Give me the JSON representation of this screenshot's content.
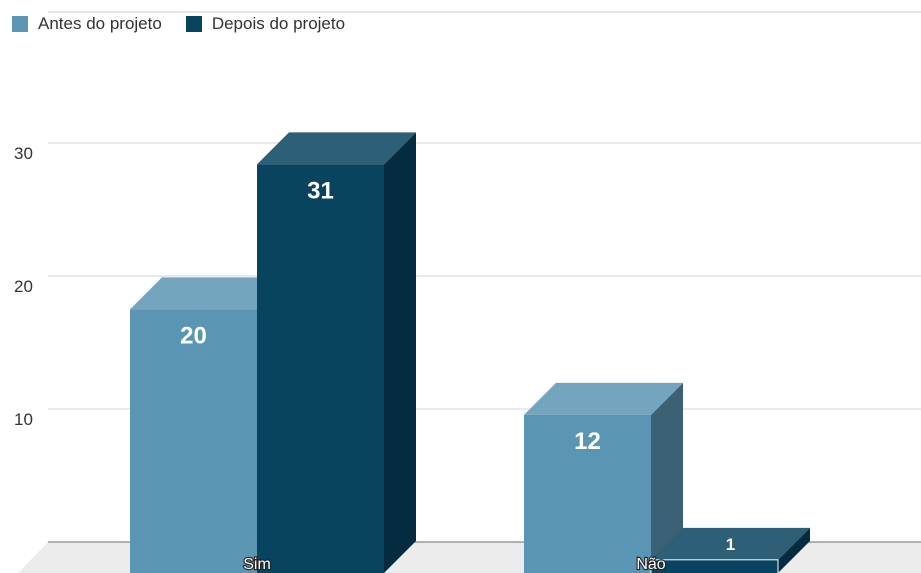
{
  "chart_data": {
    "type": "bar",
    "categories": [
      "Sim",
      "Não"
    ],
    "series": [
      {
        "name": "Antes do projeto",
        "values": [
          20,
          12
        ],
        "color": "#5b95b4"
      },
      {
        "name": "Depois do projeto",
        "values": [
          31,
          1
        ],
        "color": "#08435f"
      }
    ],
    "yticks": [
      10,
      20,
      30
    ],
    "ylim": [
      0,
      40
    ],
    "grid": true,
    "legend_position": "top-left",
    "style": "3d"
  }
}
